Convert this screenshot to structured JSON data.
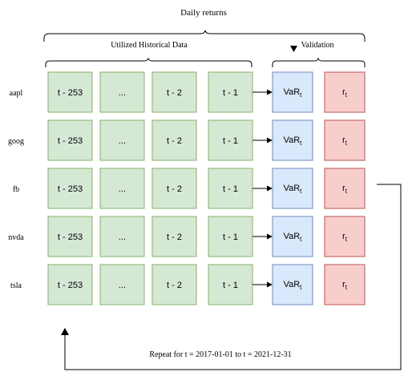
{
  "title": "Daily returns",
  "historical_label": "Utilized Historical Data",
  "validation_label": "Validation",
  "stocks": [
    "aapl",
    "goog",
    "fb",
    "nvda",
    "tsla"
  ],
  "history_cells": [
    "t - 253",
    "...",
    "t -  2",
    "t - 1"
  ],
  "var_label": {
    "main": "VaR",
    "sub": "t"
  },
  "return_label": {
    "main": "r",
    "sub": "t"
  },
  "repeat_text": "Repeat for t =  2017-01-01 to t = 2021-12-31",
  "colors": {
    "history_fill": "#d5e8d4",
    "history_stroke": "#82b366",
    "var_fill": "#dae8fc",
    "var_stroke": "#6c8ebf",
    "return_fill": "#f8cecc",
    "return_stroke": "#b85450"
  }
}
